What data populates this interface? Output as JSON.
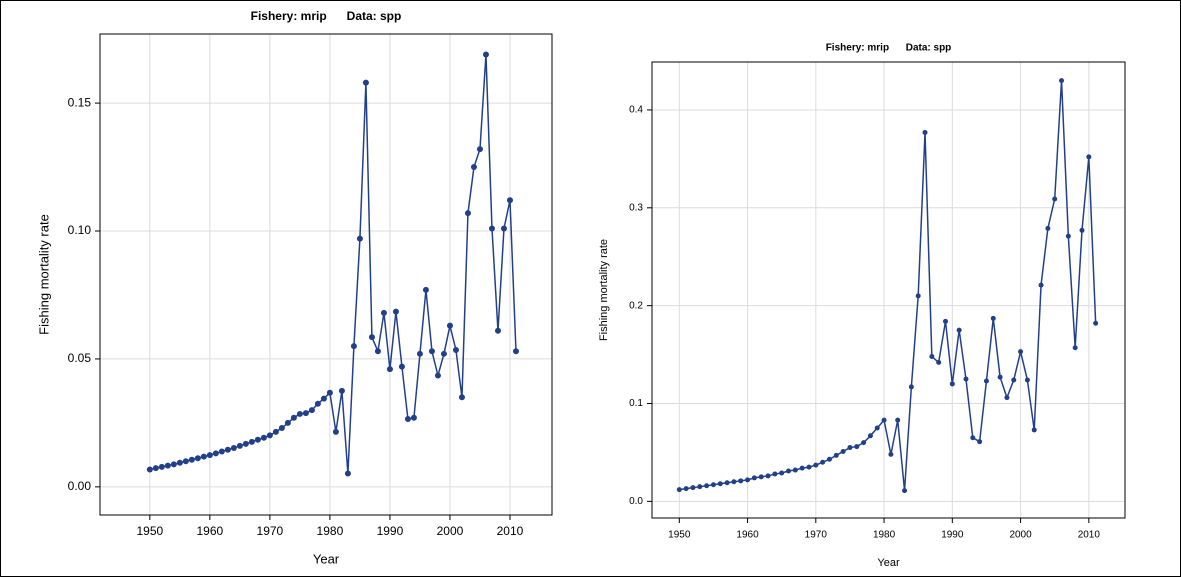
{
  "chart_data": [
    {
      "type": "line",
      "title": "Fishery: mrip      Data: spp",
      "xlabel": "Year",
      "ylabel": "Fishing mortality rate",
      "color": "#22408a",
      "grid": true,
      "x": [
        1950,
        1951,
        1952,
        1953,
        1954,
        1955,
        1956,
        1957,
        1958,
        1959,
        1960,
        1961,
        1962,
        1963,
        1964,
        1965,
        1966,
        1967,
        1968,
        1969,
        1970,
        1971,
        1972,
        1973,
        1974,
        1975,
        1976,
        1977,
        1978,
        1979,
        1980,
        1981,
        1982,
        1983,
        1984,
        1985,
        1986,
        1987,
        1988,
        1989,
        1990,
        1991,
        1992,
        1993,
        1994,
        1995,
        1996,
        1997,
        1998,
        1999,
        2000,
        2001,
        2002,
        2003,
        2004,
        2005,
        2006,
        2007,
        2008,
        2009,
        2010,
        2011
      ],
      "values": [
        0.0068,
        0.0073,
        0.0078,
        0.0083,
        0.0088,
        0.0094,
        0.01,
        0.0106,
        0.0112,
        0.0118,
        0.0124,
        0.0131,
        0.0138,
        0.0145,
        0.0152,
        0.016,
        0.0168,
        0.0176,
        0.0184,
        0.0192,
        0.0201,
        0.0215,
        0.023,
        0.025,
        0.027,
        0.0285,
        0.0288,
        0.03,
        0.0325,
        0.0345,
        0.0368,
        0.0215,
        0.0375,
        0.0052,
        0.055,
        0.097,
        0.158,
        0.0585,
        0.053,
        0.068,
        0.046,
        0.0685,
        0.047,
        0.0265,
        0.027,
        0.052,
        0.077,
        0.053,
        0.0435,
        0.052,
        0.063,
        0.0535,
        0.035,
        0.107,
        0.125,
        0.132,
        0.169,
        0.101,
        0.061,
        0.101,
        0.112,
        0.053
      ],
      "xlim": [
        1941.7,
        2017
      ],
      "xticks": [
        1950,
        1960,
        1970,
        1980,
        1990,
        2000,
        2010
      ],
      "ylim": [
        -0.011,
        0.177
      ],
      "yticks": [
        {
          "value": 0,
          "label": "0.00"
        },
        0.05,
        {
          "value": 0.1,
          "label": "0.10"
        },
        0.15
      ]
    },
    {
      "type": "line",
      "title": "Fishery: mrip      Data: spp",
      "xlabel": "Year",
      "ylabel": "Fishing mortality rate",
      "color": "#22408a",
      "grid": true,
      "x": [
        1950,
        1951,
        1952,
        1953,
        1954,
        1955,
        1956,
        1957,
        1958,
        1959,
        1960,
        1961,
        1962,
        1963,
        1964,
        1965,
        1966,
        1967,
        1968,
        1969,
        1970,
        1971,
        1972,
        1973,
        1974,
        1975,
        1976,
        1977,
        1978,
        1979,
        1980,
        1981,
        1982,
        1983,
        1984,
        1985,
        1986,
        1987,
        1988,
        1989,
        1990,
        1991,
        1992,
        1993,
        1994,
        1995,
        1996,
        1997,
        1998,
        1999,
        2000,
        2001,
        2002,
        2003,
        2004,
        2005,
        2006,
        2007,
        2008,
        2009,
        2010,
        2011
      ],
      "values": [
        0.012,
        0.013,
        0.014,
        0.015,
        0.016,
        0.017,
        0.018,
        0.019,
        0.02,
        0.021,
        0.022,
        0.024,
        0.025,
        0.026,
        0.028,
        0.029,
        0.031,
        0.032,
        0.034,
        0.035,
        0.037,
        0.04,
        0.043,
        0.047,
        0.051,
        0.055,
        0.056,
        0.06,
        0.067,
        0.075,
        0.083,
        0.048,
        0.083,
        0.011,
        0.117,
        0.21,
        0.377,
        0.148,
        0.142,
        0.184,
        0.12,
        0.175,
        0.125,
        0.065,
        0.061,
        0.123,
        0.187,
        0.127,
        0.106,
        0.124,
        0.153,
        0.124,
        0.073,
        0.221,
        0.279,
        0.309,
        0.43,
        0.271,
        0.157,
        0.277,
        0.352,
        0.182
      ],
      "xlim": [
        1946,
        2015.3
      ],
      "xticks": [
        1950,
        1960,
        1970,
        1980,
        1990,
        2000,
        2010
      ],
      "ylim": [
        -0.017,
        0.449
      ],
      "yticks": [
        {
          "value": 0,
          "label": "0.0"
        },
        0.1,
        0.2,
        0.3,
        0.4
      ]
    }
  ]
}
